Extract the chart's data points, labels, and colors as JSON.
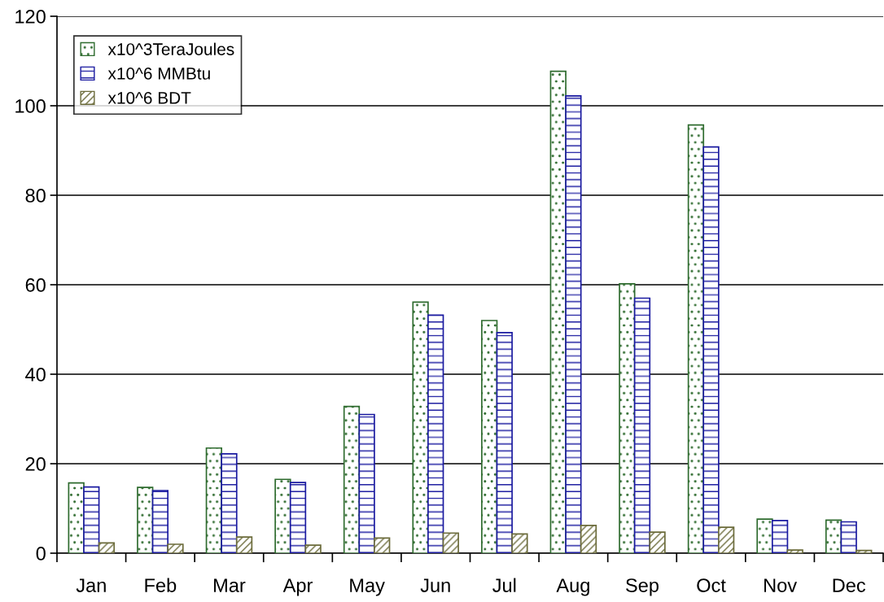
{
  "chart_data": {
    "type": "bar",
    "categories": [
      "Jan",
      "Feb",
      "Mar",
      "Apr",
      "May",
      "Jun",
      "Jul",
      "Aug",
      "Sep",
      "Oct",
      "Nov",
      "Dec"
    ],
    "series": [
      {
        "name": "x10^3TeraJoules",
        "color": "#2e6b2e",
        "values": [
          15.7,
          14.7,
          23.5,
          16.5,
          32.8,
          56.1,
          52.0,
          107.7,
          60.2,
          95.7,
          7.6,
          7.4
        ]
      },
      {
        "name": "x10^6 MMBtu",
        "color": "#1a1aa0",
        "values": [
          14.8,
          14.0,
          22.2,
          15.8,
          31.0,
          53.2,
          49.3,
          102.2,
          57.0,
          90.8,
          7.3,
          7.0
        ]
      },
      {
        "name": "x10^6 BDT",
        "color": "#6b6b3a",
        "values": [
          2.3,
          2.0,
          3.6,
          1.8,
          3.4,
          4.5,
          4.3,
          6.2,
          4.7,
          5.8,
          0.7,
          0.6
        ]
      }
    ],
    "ylim": [
      0,
      120
    ],
    "yticks": [
      0,
      20,
      40,
      60,
      80,
      100,
      120
    ],
    "grid": "y",
    "legend": "top left"
  }
}
